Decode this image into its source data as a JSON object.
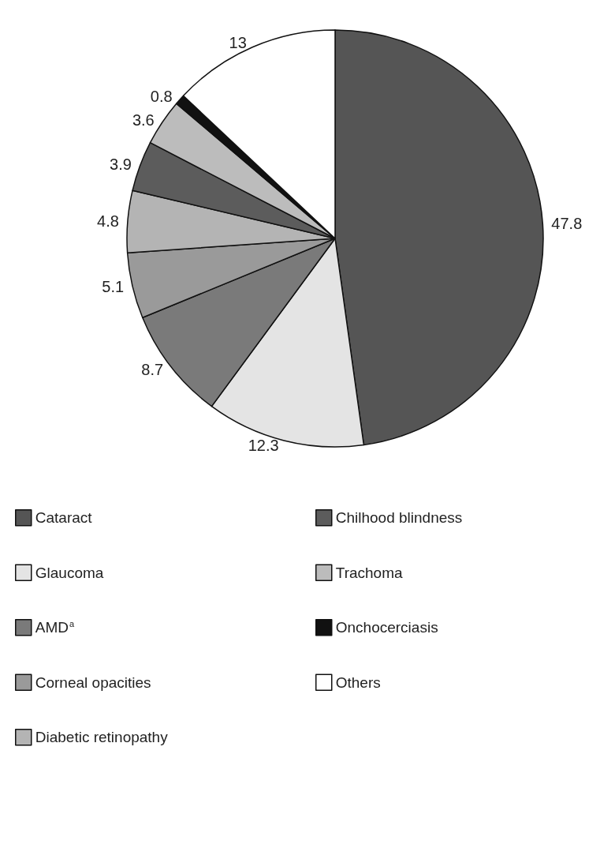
{
  "chart_data": {
    "type": "pie",
    "categories": [
      "Cataract",
      "Glaucoma",
      "AMD$^{a}$",
      "Corneal opacities",
      "Diabetic retinopathy",
      "Chilhood blindness",
      "Trachoma",
      "Onchocerciasis",
      "Others"
    ],
    "values": [
      47.8,
      12.3,
      8.7,
      5.1,
      4.8,
      3.9,
      3.6,
      0.8,
      13
    ],
    "colors": [
      "#555555",
      "#e4e4e4",
      "#7a7a7a",
      "#9a9a9a",
      "#b4b4b4",
      "#5c5c5c",
      "#bcbcbc",
      "#111111",
      "#ffffff"
    ],
    "data_labels": true,
    "legend": "bottom"
  }
}
